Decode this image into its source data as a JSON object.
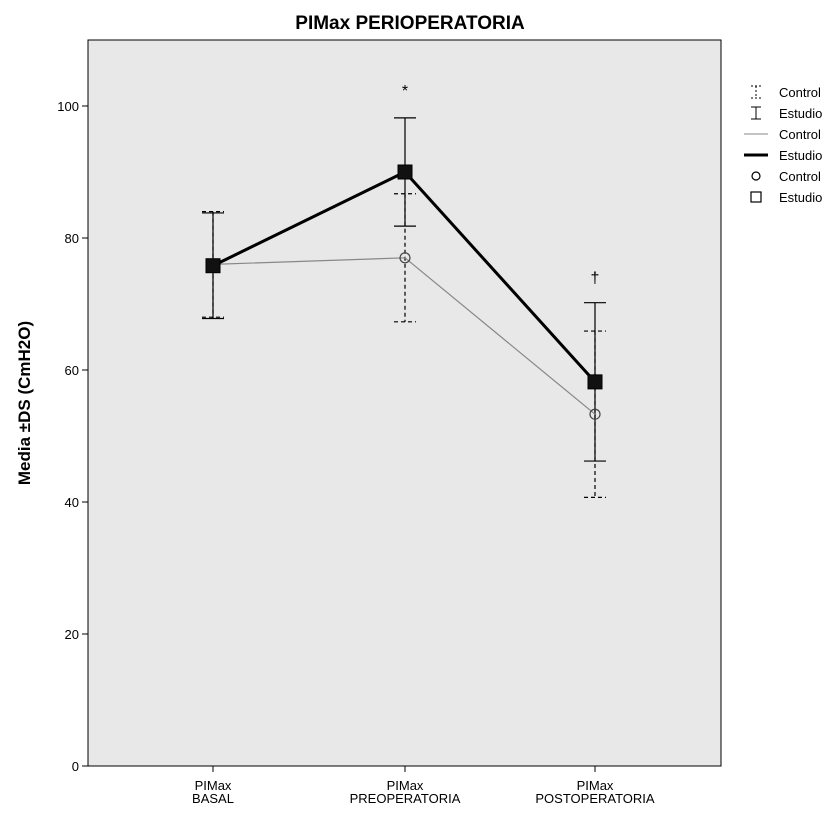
{
  "chart_data": {
    "type": "line",
    "title": "PIMax PERIOPERATORIA",
    "ylabel": "Media ±DS (CmH2O)",
    "xlabel": "",
    "ylim": [
      0,
      110
    ],
    "yticks": [
      0,
      20,
      40,
      60,
      80,
      100
    ],
    "grid": false,
    "plot_background": "#e8e8e8",
    "legend_position": "right-top",
    "categories": [
      [
        "PIMax",
        "BASAL"
      ],
      [
        "PIMax",
        "PREOPERATORIA"
      ],
      [
        "PIMax",
        "POSTOPERATORIA"
      ]
    ],
    "series": [
      {
        "name": "Control",
        "line_style": "thin-gray",
        "marker": "circle",
        "errorbar_style": "dashed",
        "color": "#888888",
        "means": [
          76,
          77,
          53.3
        ],
        "sd": [
          8,
          9.7,
          12.6
        ]
      },
      {
        "name": "Estudio",
        "line_style": "thick-black",
        "marker": "square",
        "errorbar_style": "solid",
        "color": "#000000",
        "means": [
          75.8,
          90,
          58.2
        ],
        "sd": [
          8,
          8.2,
          12
        ]
      }
    ],
    "annotations": [
      {
        "category_index": 1,
        "text": "*",
        "y": 101.5
      },
      {
        "category_index": 2,
        "text": "†",
        "y": 73.2
      }
    ],
    "legend": [
      {
        "symbol": "errorbar-dashed",
        "label": "Control"
      },
      {
        "symbol": "errorbar-solid",
        "label": "Estudio"
      },
      {
        "symbol": "line-thin",
        "label": "Control"
      },
      {
        "symbol": "line-thick",
        "label": "Estudio"
      },
      {
        "symbol": "circle",
        "label": "Control"
      },
      {
        "symbol": "square",
        "label": "Estudio"
      }
    ]
  }
}
